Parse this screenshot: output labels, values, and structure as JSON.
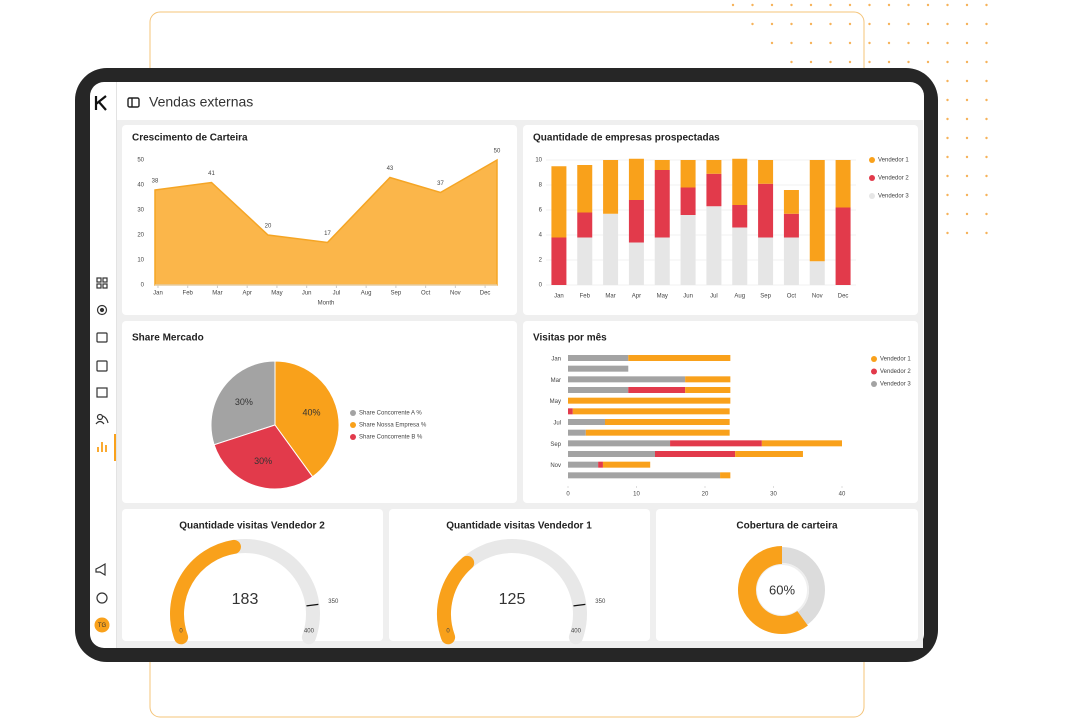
{
  "header": {
    "title": "Vendas externas",
    "avatar": "TG"
  },
  "chart_data": [
    {
      "type": "area",
      "title": "Crescimento de Carteira",
      "xlabel": "Month",
      "color": "#fbb64a",
      "line_color": "#f5a524",
      "x": [
        -0.1,
        1.8,
        3.7,
        5.7,
        7.8,
        9.5,
        11.4
      ],
      "values": [
        38,
        41,
        20,
        17,
        43,
        37,
        50
      ],
      "xlim": [
        -0.1,
        11.4
      ],
      "xticks": [
        {
          "value": 0,
          "label": "Jan"
        },
        {
          "value": 1,
          "label": "Feb"
        },
        {
          "value": 2,
          "label": "Mar"
        },
        {
          "value": 3,
          "label": "Apr"
        },
        {
          "value": 4,
          "label": "May"
        },
        {
          "value": 5,
          "label": "Jun"
        },
        {
          "value": 6,
          "label": "Jul"
        },
        {
          "value": 7,
          "label": "Aug"
        },
        {
          "value": 8,
          "label": "Sep"
        },
        {
          "value": 9,
          "label": "Oct"
        },
        {
          "value": 10,
          "label": "Nov"
        },
        {
          "value": 11,
          "label": "Dec"
        }
      ],
      "ylim": [
        0,
        50
      ],
      "yticks": [
        0,
        10,
        20,
        30,
        40,
        50
      ]
    },
    {
      "type": "stacked_bar",
      "title": "Quantidade de empresas prospectadas",
      "categories": [
        "Jan",
        "Feb",
        "Mar",
        "Apr",
        "May",
        "Jun",
        "Jul",
        "Aug",
        "Sep",
        "Oct",
        "Nov",
        "Dec"
      ],
      "series": [
        {
          "name": "Vendedor 1",
          "color": "#f9a11b",
          "values": [
            5.7,
            3.8,
            4.3,
            3.3,
            0.8,
            2.2,
            1.1,
            3.7,
            1.9,
            1.9,
            8.1,
            3.8
          ]
        },
        {
          "name": "Vendedor 2",
          "color": "#e23a4b",
          "values": [
            3.8,
            2,
            0,
            3.4,
            5.4,
            2.2,
            2.6,
            1.8,
            4.3,
            1.9,
            0,
            6.2
          ]
        },
        {
          "name": "Vendedor 3",
          "color": "#e6e6e6",
          "values": [
            0,
            3.8,
            5.7,
            3.4,
            3.8,
            5.6,
            6.3,
            4.6,
            3.8,
            3.8,
            1.9,
            0
          ]
        }
      ],
      "ylim": [
        0,
        10
      ],
      "yticks": [
        0,
        2,
        4,
        6,
        8,
        10
      ],
      "grid": true,
      "legend": "right"
    },
    {
      "type": "pie",
      "title": "Share Mercado",
      "categories": [
        "Share Concorrente A %",
        "Share Nossa Empresa %",
        "Share Concorrente B %"
      ],
      "values": [
        30,
        40,
        30
      ],
      "value_labels": [
        "30%",
        "40%",
        "30%"
      ],
      "colors": [
        "#a3a3a3",
        "#f9a11b",
        "#e23a4b"
      ],
      "legend": "right"
    },
    {
      "type": "stacked_hbar",
      "title": "Visitas por mês",
      "categories": [
        "Jan",
        null,
        "Mar",
        null,
        "May",
        null,
        "Jul",
        null,
        "Sep",
        null,
        "Nov",
        null
      ],
      "series": [
        {
          "name": "Vendedor 1",
          "color": "#f9a11b",
          "values": [
            14.9,
            0,
            6.6,
            6.6,
            23.7,
            22.9,
            18.2,
            21,
            11.7,
            9.9,
            6.9,
            1.5
          ]
        },
        {
          "name": "Vendedor 2",
          "color": "#e23a4b",
          "values": [
            0,
            0,
            0,
            8.3,
            0,
            0.7,
            0,
            0,
            13.4,
            11.7,
            0.7,
            0
          ]
        },
        {
          "name": "Vendedor 3",
          "color": "#a3a3a3",
          "values": [
            8.8,
            8.8,
            17.1,
            8.8,
            0,
            0,
            5.4,
            2.6,
            14.9,
            12.7,
            4.4,
            22.2
          ]
        }
      ],
      "xlim": [
        0,
        40
      ],
      "xticks": [
        0,
        10,
        20,
        30,
        40
      ],
      "legend": "right"
    },
    {
      "type": "gauge",
      "title": "Quantidade visitas Vendedor 2",
      "value": 183,
      "min": 0,
      "max": 400,
      "threshold": 350,
      "color": "#f9a11b"
    },
    {
      "type": "gauge",
      "title": "Quantidade visitas Vendedor 1",
      "value": 125,
      "min": 0,
      "max": 400,
      "threshold": 350,
      "color": "#f9a11b"
    },
    {
      "type": "donut",
      "title": "Cobertura de carteira",
      "value": 60,
      "value_label": "60%",
      "color": "#f9a11b"
    }
  ]
}
